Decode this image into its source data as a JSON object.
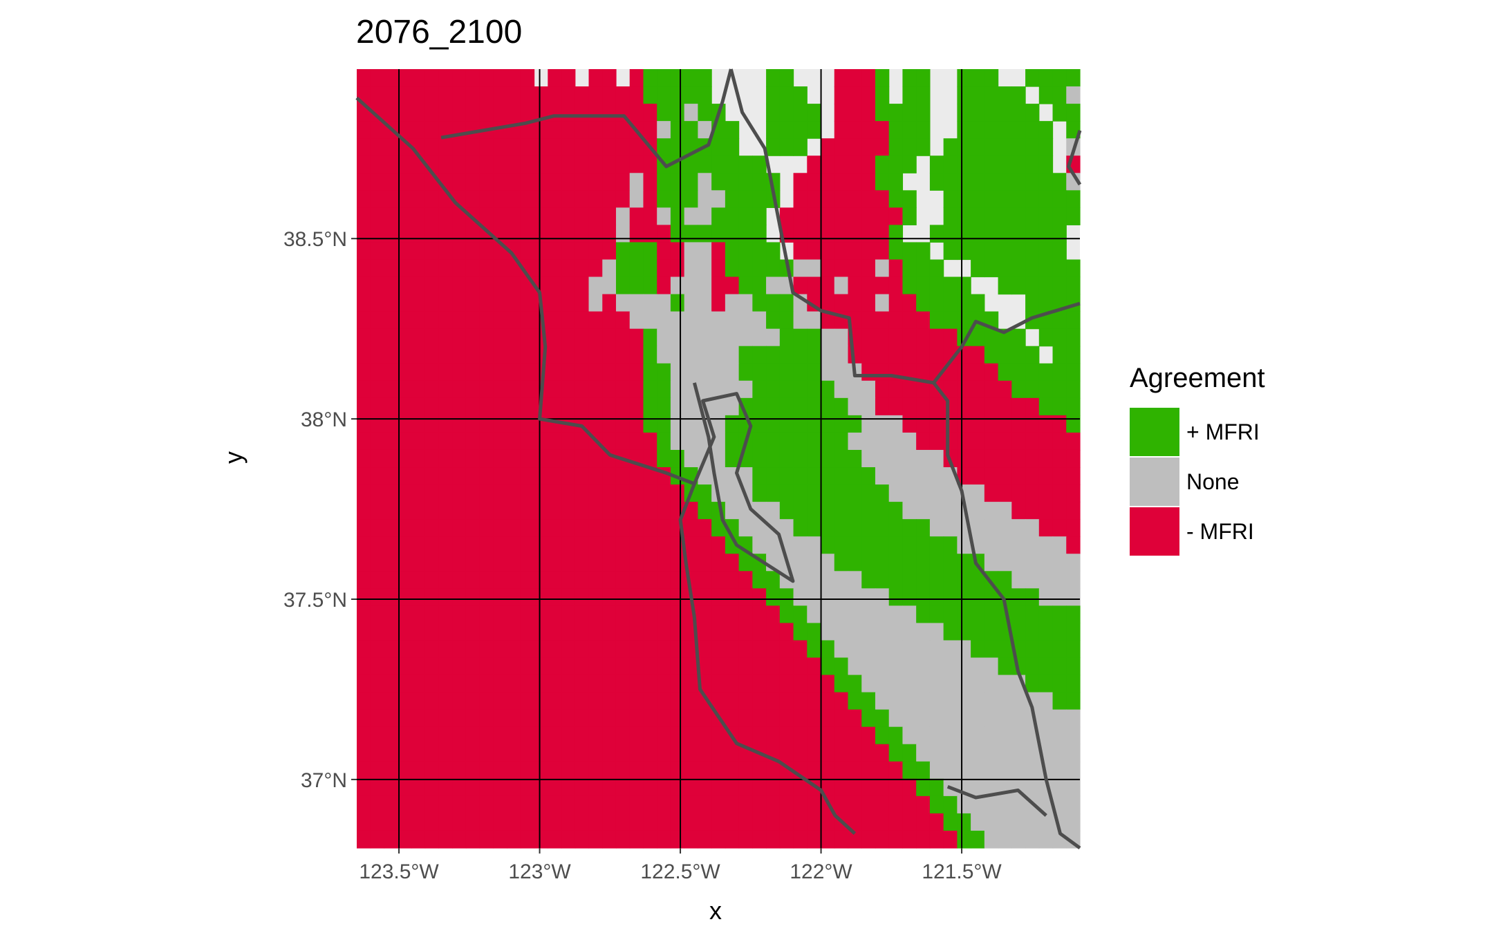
{
  "title": "2076_2100",
  "x_axis": {
    "title": "x",
    "ticks": [
      "123.5°W",
      "123°W",
      "122.5°W",
      "122°W",
      "121.5°W"
    ],
    "tick_values": [
      -123.5,
      -123.0,
      -122.5,
      -122.0,
      -121.5
    ]
  },
  "y_axis": {
    "title": "y",
    "ticks": [
      "38.5°N",
      "38°N",
      "37.5°N",
      "37°N"
    ],
    "tick_values": [
      38.5,
      38.0,
      37.5,
      37.0
    ]
  },
  "extent": {
    "lon": [
      -123.65,
      -121.08
    ],
    "lat": [
      36.81,
      38.97
    ]
  },
  "legend": {
    "title": "Agreement",
    "placement": "right",
    "items": [
      {
        "code": "G",
        "label": "+ MFRI",
        "color": "#2fb300"
      },
      {
        "code": "S",
        "label": "None",
        "color": "#bebebe"
      },
      {
        "code": "R",
        "label": "- MFRI",
        "color": "#df0139"
      }
    ]
  },
  "colors": {
    "na": "#ebebeb",
    "grid": "#000000",
    "boundary": "#4d4d4d"
  },
  "raster": {
    "legend_codes": "G = + MFRI, S = None, R = - MFRI, . = no data",
    "rows": [
      "RRRRRRRRRRRRR.RR.RR.RGGGGG....GG...RRRG.GG..GGG..GGGG",
      "RRRRRRRRRRRRRRRRRRRRRGGGGG....GGG..RRRG.GG..GGGGG.GGS",
      "RRRRRRRRRRRRRRRRRRRRRRGGSGG...GGGG.RRRGGGG..GGGGGG.GG",
      "RRRRRRRRRRRRRRRRRRRRRRSGGSGG..GGGG.RRRRGGG..GGGGGGG.G",
      "RRRRRRRRRRRRRRRRRRRRRRGGGGGG..GGG.RRRRRGGG.GGGGGGGG.S",
      "RRRRRRRRRRRRRRRRRRRRRRGGGGGGGG...RRRRRGGG.GGGGGGGGG.R",
      "RRRRRRRRRRRRRRRRRRRRSRGGGSGGGGG.RRRRRRGG..GGGGGGGGGGS",
      "RRRRRRRRRRRRRRRRRRRRSRGGGSSGGGG.RRRRRRRGG..GGGGGGGGGG",
      "RRRRRRRRRRRRRRRRRRRSRRSGSSGGGG.RRRRRRRRRG..GGGGGGGGGG",
      "RRRRRRRRRRRRRRRRRRRSRRRGGGGGGG.RRRRRRRRG..GGGGGGGGGG.",
      "RRRRRRRRRRRRRRRRRRRGGGRRSSRGGGG.RRRRRRRGGG.GGGGGGGGG.",
      "RRRRRRRRRRRRRRRRRRSGGGRRSSRGGGGGSSRRRRSRGGG..GGGGGGGG",
      "RRRRRRRRRRRRRRRRRSSGGGRSSSRRGGSSRRRSRRRRGGGGG..GGGGGG",
      "RRRRRRRRRRRRRRRRRSRSSSSGSSRSSGGGSRRRRRSRRGGGGG...GGGG",
      "RRRRRRRRRRRRRRRRRRRRSSSSSSSSSSGGSSRRRRRRRRGGGGG..GGGG",
      "RRRRRRRRRRRRRRRRRRRRRGSSSSSSSSSGGGSSRRRRRRRRGGGGG.GGG",
      "RRRRRRRRRRRRRRRRRRRRRGSSSSSSGGGGGGSSRRRRRRRRRRGGGG.GG",
      "RRRRRRRRRRRRRRRRRRRRRGGSSSSSGGGGGGSSSRRRRRRRRRRGGGGGG",
      "RRRRRRRRRRRRRRRRRRRRRGGSSSSSSGGGGGGSSSRRRRRRRRRRGGGGG",
      "RRRRRRRRRRRRRRRRRRRRRGGSSSSSGGGGGGGGSSRRRRRRRRRRRRGGG",
      "RRRRRRRRRRRRRRRRRRRRRGGSSSSGGGGGGGGGGSSSRRRRRRRRRRRRG",
      "RRRRRRRRRRRRRRRRRRRRRRGSSSSGGGGGGGGGSSSSSRRRRRRRRRRRR",
      "RRRRRRRRRRRRRRRRRRRRRRGGSSSGGGGGGGGGGSSSSSSRRRRRRRRRR",
      "RRRRRRRRRRRRRRRRRRRRRRRGGSSSSGGGGGGGGGSSSSSSRRRRRRRRR",
      "RRRRRRRRRRRRRRRRRRRRRRRRGGSSSGGGGGGGGGGSSSSSSSRRRRRRR",
      "RRRRRRRRRRRRRRRRRRRRRRRRRGGSSSSGGGGGGGGGSSSSSSSSRRRRR",
      "RRRRRRRRRRRRRRRRRRRRRRRRRRGGSSSSGGGGGGGGGGSSSSSSSSRRR",
      "RRRRRRRRRRRRRRRRRRRRRRRRRRRGGSSSSSGGGGGGGGGGSSSSSSSSR",
      "RRRRRRRRRRRRRRRRRRRRRRRRRRRRGGSSSSSGGGGGGGGGGGSSSSSSS",
      "RRRRRRRRRRRRRRRRRRRRRRRRRRRRRGGSSSSSSGGGGGGGGGGGSSSSS",
      "RRRRRRRRRRRRRRRRRRRRRRRRRRRRRRGGSSSSSSSGGGGGGGGGGGSSS",
      "RRRRRRRRRRRRRRRRRRRRRRRRRRRRRRRGGSSSSSSSSGGGGGGGGGGGG",
      "RRRRRRRRRRRRRRRRRRRRRRRRRRRRRRRRGGSSSSSSSSSGGGGGGGGGG",
      "RRRRRRRRRRRRRRRRRRRRRRRRRRRRRRRRRGGSSSSSSSSSSGGGGGGGG",
      "RRRRRRRRRRRRRRRRRRRRRRRRRRRRRRRRRRGGSSSSSSSSSSSGGGGGG",
      "RRRRRRRRRRRRRRRRRRRRRRRRRRRRRRRRRRRGGSSSSSSSSSSSSGGGG",
      "RRRRRRRRRRRRRRRRRRRRRRRRRRRRRRRRRRRRGGSSSSSSSSSSSSSGG",
      "RRRRRRRRRRRRRRRRRRRRRRRRRRRRRRRRRRRRRGGSSSSSSSSSSSSSS",
      "RRRRRRRRRRRRRRRRRRRRRRRRRRRRRRRRRRRRRRGGSSSSSSSSSSSSS",
      "RRRRRRRRRRRRRRRRRRRRRRRRRRRRRRRRRRRRRRRGGSSSSSSSSSSSS",
      "RRRRRRRRRRRRRRRRRRRRRRRRRRRRRRRRRRRRRRRRGGSSSSSSSSSSS",
      "RRRRRRRRRRRRRRRRRRRRRRRRRRRRRRRRRRRRRRRRRGGSSSSSSSSSS",
      "RRRRRRRRRRRRRRRRRRRRRRRRRRRRRRRRRRRRRRRRRRGGSSSSSSSSS",
      "RRRRRRRRRRRRRRRRRRRRRRRRRRRRRRRRRRRRRRRRRRRGGSSSSSSSS",
      "RRRRRRRRRRRRRRRRRRRRRRRRRRRRRRRRRRRRRRRRRRRRGGSSSSSSS"
    ]
  },
  "boundaries": [
    [
      [
        -123.65,
        38.89
      ],
      [
        -123.45,
        38.75
      ],
      [
        -123.3,
        38.6
      ],
      [
        -123.1,
        38.46
      ],
      [
        -123.0,
        38.35
      ],
      [
        -122.98,
        38.2
      ],
      [
        -123.0,
        38.0
      ],
      [
        -122.85,
        37.98
      ],
      [
        -122.75,
        37.9
      ],
      [
        -122.55,
        37.85
      ],
      [
        -122.45,
        37.82
      ],
      [
        -122.5,
        37.72
      ],
      [
        -122.48,
        37.6
      ],
      [
        -122.45,
        37.45
      ],
      [
        -122.43,
        37.25
      ],
      [
        -122.3,
        37.1
      ],
      [
        -122.15,
        37.05
      ],
      [
        -122.0,
        36.97
      ],
      [
        -121.95,
        36.9
      ],
      [
        -121.88,
        36.85
      ]
    ],
    [
      [
        -123.35,
        38.78
      ],
      [
        -123.05,
        38.82
      ],
      [
        -122.95,
        38.84
      ],
      [
        -122.7,
        38.84
      ],
      [
        -122.55,
        38.7
      ],
      [
        -122.4,
        38.76
      ],
      [
        -122.35,
        38.88
      ],
      [
        -122.32,
        38.97
      ]
    ],
    [
      [
        -122.45,
        37.82
      ],
      [
        -122.38,
        37.95
      ],
      [
        -122.42,
        38.05
      ],
      [
        -122.3,
        38.07
      ],
      [
        -122.25,
        37.98
      ],
      [
        -122.3,
        37.85
      ],
      [
        -122.25,
        37.75
      ],
      [
        -122.15,
        37.68
      ],
      [
        -122.1,
        37.55
      ],
      [
        -122.2,
        37.6
      ],
      [
        -122.3,
        37.65
      ],
      [
        -122.35,
        37.72
      ],
      [
        -122.38,
        37.85
      ],
      [
        -122.4,
        37.95
      ],
      [
        -122.45,
        38.1
      ]
    ],
    [
      [
        -122.32,
        38.97
      ],
      [
        -122.28,
        38.85
      ],
      [
        -122.2,
        38.75
      ],
      [
        -122.15,
        38.55
      ],
      [
        -122.1,
        38.35
      ],
      [
        -122.0,
        38.3
      ],
      [
        -121.9,
        38.28
      ],
      [
        -121.88,
        38.12
      ],
      [
        -121.75,
        38.12
      ],
      [
        -121.6,
        38.1
      ],
      [
        -121.55,
        38.05
      ],
      [
        -121.55,
        37.9
      ],
      [
        -121.5,
        37.8
      ],
      [
        -121.45,
        37.6
      ],
      [
        -121.35,
        37.5
      ],
      [
        -121.3,
        37.3
      ],
      [
        -121.25,
        37.2
      ],
      [
        -121.2,
        37.0
      ],
      [
        -121.15,
        36.85
      ],
      [
        -121.08,
        36.81
      ]
    ],
    [
      [
        -121.6,
        38.1
      ],
      [
        -121.5,
        38.2
      ],
      [
        -121.45,
        38.27
      ],
      [
        -121.35,
        38.24
      ],
      [
        -121.25,
        38.28
      ],
      [
        -121.08,
        38.32
      ]
    ],
    [
      [
        -121.55,
        36.98
      ],
      [
        -121.45,
        36.95
      ],
      [
        -121.3,
        36.97
      ],
      [
        -121.2,
        36.9
      ]
    ],
    [
      [
        -121.08,
        38.8
      ],
      [
        -121.12,
        38.7
      ],
      [
        -121.08,
        38.65
      ]
    ]
  ]
}
